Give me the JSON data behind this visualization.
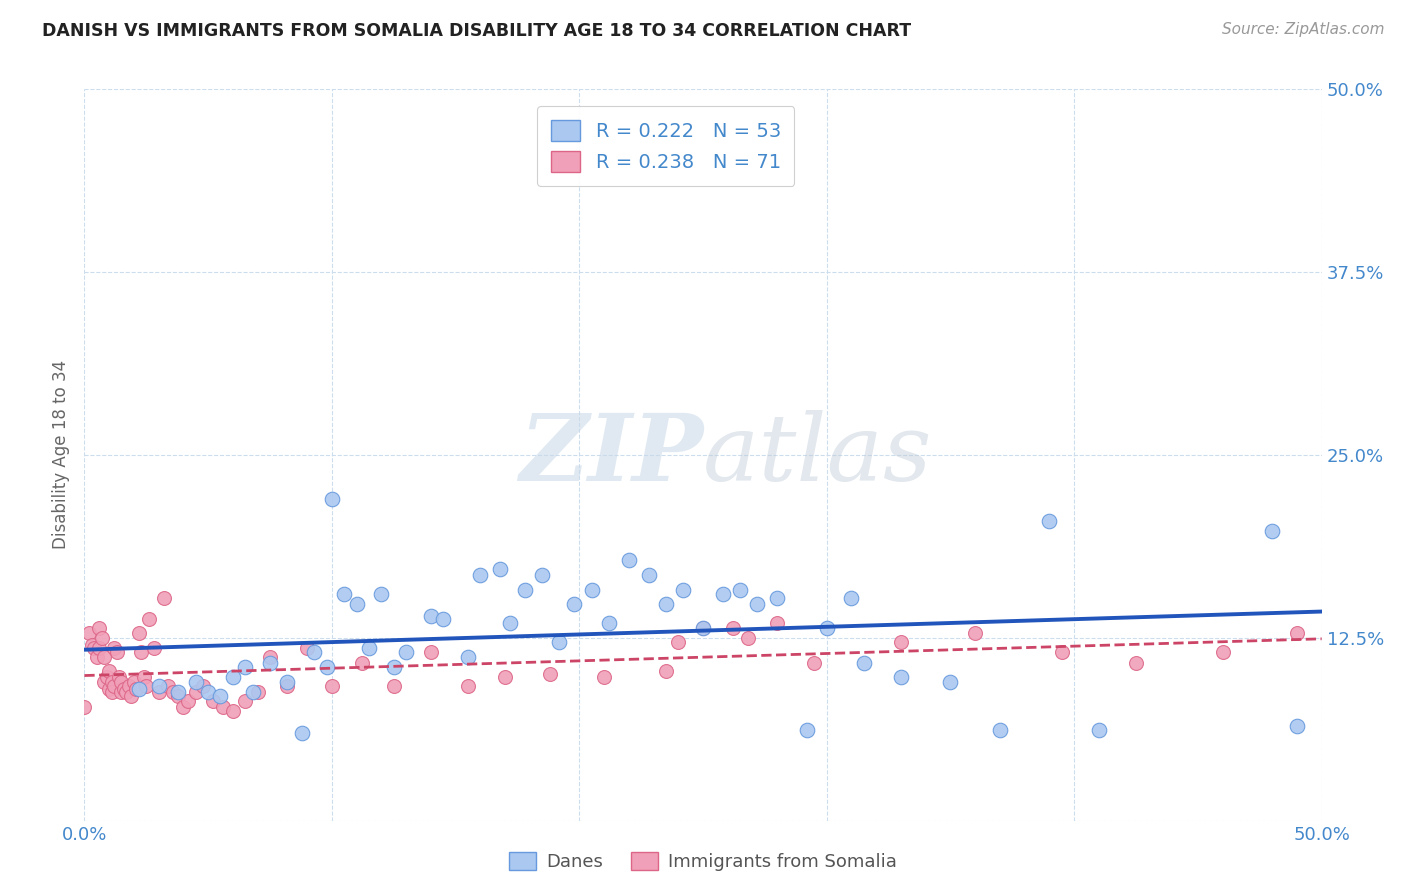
{
  "title": "DANISH VS IMMIGRANTS FROM SOMALIA DISABILITY AGE 18 TO 34 CORRELATION CHART",
  "source": "Source: ZipAtlas.com",
  "ylabel": "Disability Age 18 to 34",
  "xlim": [
    0.0,
    0.5
  ],
  "ylim": [
    0.0,
    0.5
  ],
  "xticks": [
    0.0,
    0.1,
    0.2,
    0.3,
    0.4,
    0.5
  ],
  "yticks": [
    0.0,
    0.125,
    0.25,
    0.375,
    0.5
  ],
  "danes_color": "#aac8f0",
  "danes_edge_color": "#6699dd",
  "somalia_color": "#f0a0b8",
  "somalia_edge_color": "#dd6688",
  "danes_line_color": "#2255bb",
  "somalia_line_color": "#cc4466",
  "danes_R": 0.222,
  "danes_N": 53,
  "somalia_R": 0.238,
  "somalia_N": 71,
  "legend_label_danes": "Danes",
  "legend_label_somalia": "Immigrants from Somalia",
  "watermark_zip": "ZIP",
  "watermark_atlas": "atlas",
  "grid_color": "#ccddee",
  "background_color": "#ffffff",
  "tick_color": "#4488cc",
  "danes_x": [
    0.022,
    0.03,
    0.038,
    0.045,
    0.05,
    0.055,
    0.06,
    0.065,
    0.068,
    0.075,
    0.082,
    0.088,
    0.093,
    0.098,
    0.1,
    0.105,
    0.11,
    0.115,
    0.12,
    0.125,
    0.13,
    0.14,
    0.145,
    0.155,
    0.16,
    0.168,
    0.172,
    0.178,
    0.185,
    0.192,
    0.198,
    0.205,
    0.212,
    0.22,
    0.228,
    0.235,
    0.242,
    0.25,
    0.258,
    0.265,
    0.272,
    0.28,
    0.292,
    0.3,
    0.31,
    0.315,
    0.33,
    0.35,
    0.37,
    0.39,
    0.41,
    0.48,
    0.49
  ],
  "danes_y": [
    0.09,
    0.092,
    0.088,
    0.095,
    0.088,
    0.085,
    0.098,
    0.105,
    0.088,
    0.108,
    0.095,
    0.06,
    0.115,
    0.105,
    0.22,
    0.155,
    0.148,
    0.118,
    0.155,
    0.105,
    0.115,
    0.14,
    0.138,
    0.112,
    0.168,
    0.172,
    0.135,
    0.158,
    0.168,
    0.122,
    0.148,
    0.158,
    0.135,
    0.178,
    0.168,
    0.148,
    0.158,
    0.132,
    0.155,
    0.158,
    0.148,
    0.152,
    0.062,
    0.132,
    0.152,
    0.108,
    0.098,
    0.095,
    0.062,
    0.205,
    0.062,
    0.198,
    0.065
  ],
  "somalia_x": [
    0.0,
    0.002,
    0.003,
    0.004,
    0.005,
    0.006,
    0.006,
    0.007,
    0.008,
    0.008,
    0.009,
    0.01,
    0.01,
    0.011,
    0.011,
    0.012,
    0.012,
    0.013,
    0.014,
    0.015,
    0.015,
    0.016,
    0.017,
    0.018,
    0.019,
    0.02,
    0.021,
    0.022,
    0.023,
    0.024,
    0.025,
    0.026,
    0.028,
    0.03,
    0.032,
    0.034,
    0.036,
    0.038,
    0.04,
    0.042,
    0.045,
    0.048,
    0.052,
    0.056,
    0.06,
    0.065,
    0.07,
    0.075,
    0.082,
    0.09,
    0.1,
    0.112,
    0.125,
    0.14,
    0.155,
    0.17,
    0.188,
    0.21,
    0.235,
    0.262,
    0.295,
    0.33,
    0.36,
    0.395,
    0.425,
    0.46,
    0.49,
    0.24,
    0.25,
    0.268,
    0.28
  ],
  "somalia_y": [
    0.078,
    0.128,
    0.12,
    0.118,
    0.112,
    0.132,
    0.118,
    0.125,
    0.112,
    0.095,
    0.098,
    0.09,
    0.102,
    0.095,
    0.088,
    0.092,
    0.118,
    0.115,
    0.098,
    0.088,
    0.095,
    0.09,
    0.088,
    0.092,
    0.085,
    0.095,
    0.09,
    0.128,
    0.115,
    0.098,
    0.092,
    0.138,
    0.118,
    0.088,
    0.152,
    0.092,
    0.088,
    0.085,
    0.078,
    0.082,
    0.088,
    0.092,
    0.082,
    0.078,
    0.075,
    0.082,
    0.088,
    0.112,
    0.092,
    0.118,
    0.092,
    0.108,
    0.092,
    0.115,
    0.092,
    0.098,
    0.1,
    0.098,
    0.102,
    0.132,
    0.108,
    0.122,
    0.128,
    0.115,
    0.108,
    0.115,
    0.128,
    0.122,
    0.132,
    0.125,
    0.135
  ]
}
